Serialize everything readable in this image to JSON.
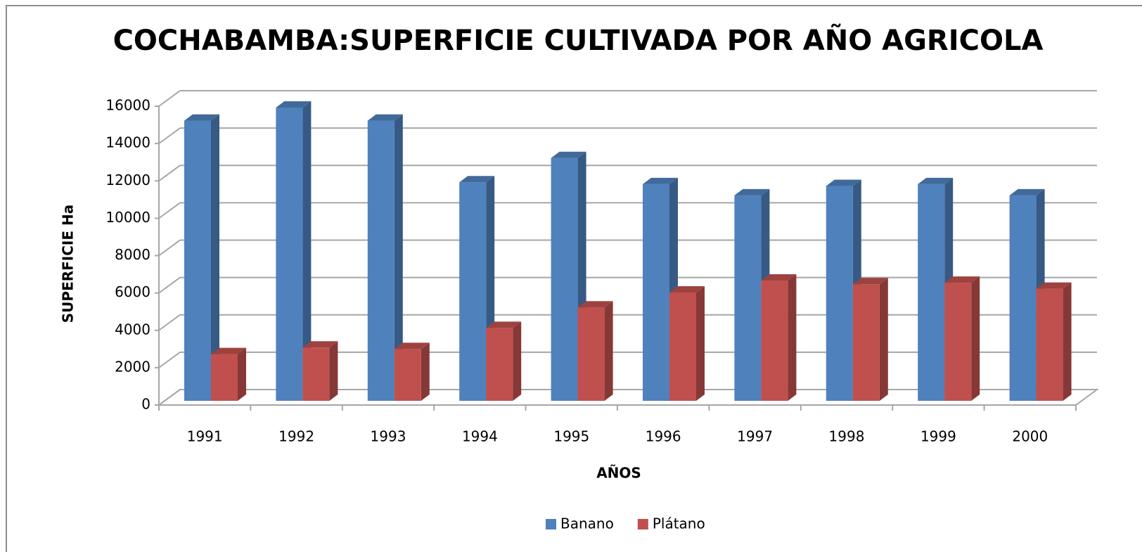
{
  "chart_data": {
    "type": "bar3d",
    "title": "COCHABAMBA:SUPERFICIE CULTIVADA POR AÑO AGRICOLA",
    "x_label": "AÑOS",
    "y_label": "SUPERFICIE Ha",
    "categories": [
      "1991",
      "1992",
      "1993",
      "1994",
      "1995",
      "1996",
      "1997",
      "1998",
      "1999",
      "2000"
    ],
    "series": [
      {
        "name": "Banano",
        "color": "#4f81bd",
        "values": [
          15000,
          15700,
          15000,
          11700,
          13000,
          11600,
          11000,
          11500,
          11600,
          11000
        ]
      },
      {
        "name": "Plátano",
        "color": "#c0504d",
        "values": [
          2500,
          2850,
          2770,
          3900,
          5000,
          5800,
          6440,
          6240,
          6320,
          6000
        ]
      }
    ],
    "ylim": [
      0,
      16000
    ],
    "yticks": [
      0,
      2000,
      4000,
      6000,
      8000,
      10000,
      12000,
      14000,
      16000
    ],
    "grid": true,
    "legend": "bottom"
  }
}
